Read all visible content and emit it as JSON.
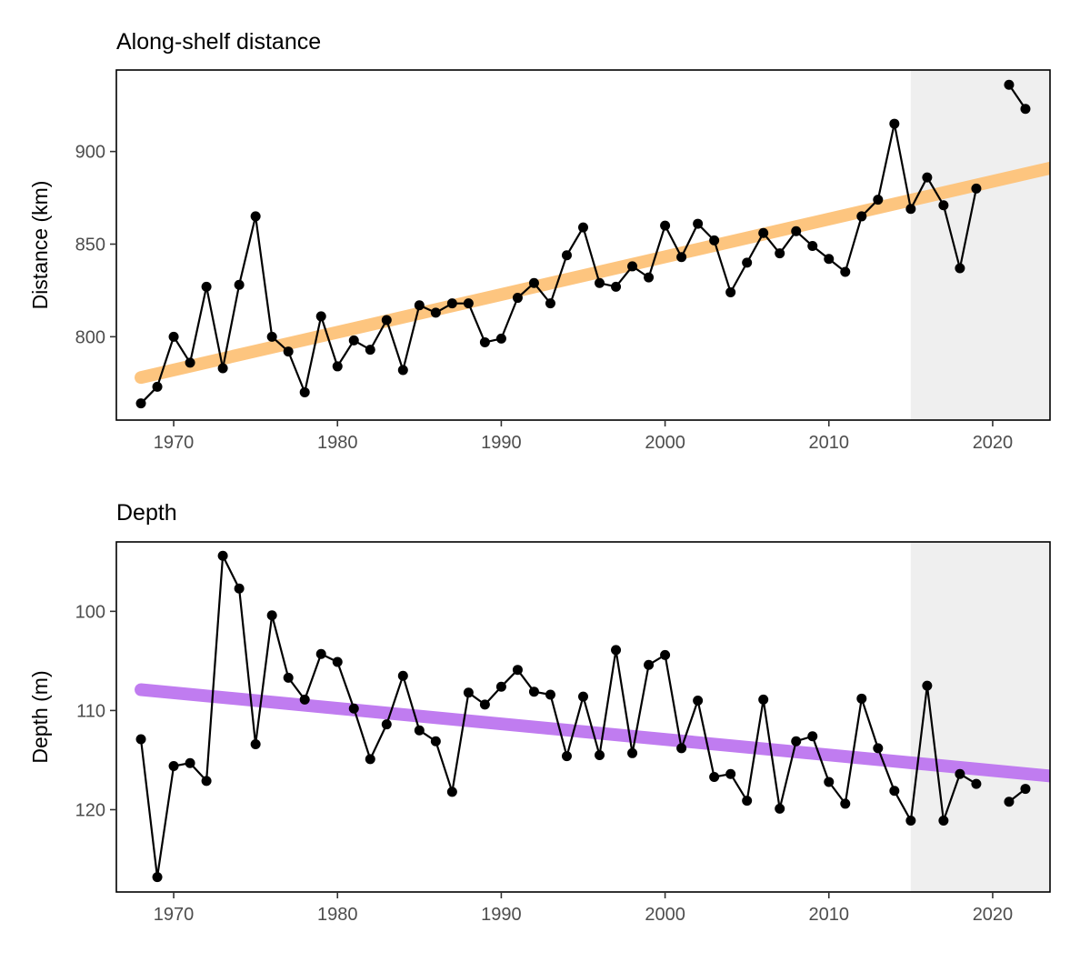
{
  "colors": {
    "point": "#000000",
    "line": "#000000",
    "shade": "#efefef",
    "panel_border": "#000000",
    "distance_trend": "#fdc57f",
    "depth_trend": "#c07cf0"
  },
  "chart_data": [
    {
      "type": "line",
      "title": "Along-shelf distance",
      "xlabel": "",
      "ylabel": "Distance (km)",
      "xlim": [
        1966.5,
        2023.5
      ],
      "ylim": [
        755,
        944
      ],
      "y_reversed": false,
      "x_ticks": [
        1970,
        1980,
        1990,
        2000,
        2010,
        2020
      ],
      "y_ticks": [
        800,
        850,
        900
      ],
      "grid": false,
      "shaded_region": [
        2015,
        2023.5
      ],
      "trend": {
        "x": [
          1968,
          2023.5
        ],
        "y": [
          778,
          891
        ]
      },
      "series": [
        {
          "x": [
            1968,
            1969,
            1970,
            1971,
            1972,
            1973,
            1974,
            1975,
            1976,
            1977,
            1978,
            1979,
            1980,
            1981,
            1982,
            1983,
            1984,
            1985,
            1986,
            1987,
            1988,
            1989,
            1990,
            1991,
            1992,
            1993,
            1994,
            1995,
            1996,
            1997,
            1998,
            1999,
            2000,
            2001,
            2002,
            2003,
            2004,
            2005,
            2006,
            2007,
            2008,
            2009,
            2010,
            2011,
            2012,
            2013,
            2014,
            2015,
            2016,
            2017,
            2018,
            2019,
            2020,
            2021,
            2022
          ],
          "y": [
            764,
            773,
            800,
            786,
            827,
            783,
            828,
            865,
            800,
            792,
            770,
            811,
            784,
            798,
            793,
            809,
            782,
            817,
            813,
            818,
            818,
            797,
            799,
            821,
            829,
            818,
            844,
            859,
            829,
            827,
            838,
            832,
            860,
            843,
            861,
            852,
            824,
            840,
            856,
            845,
            857,
            849,
            842,
            835,
            865,
            874,
            915,
            869,
            886,
            871,
            837,
            880,
            null,
            936,
            923
          ]
        }
      ]
    },
    {
      "type": "line",
      "title": "Depth",
      "xlabel": "",
      "ylabel": "Depth (m)",
      "xlim": [
        1966.5,
        2023.5
      ],
      "ylim": [
        93,
        128.3
      ],
      "y_reversed": true,
      "x_ticks": [
        1970,
        1980,
        1990,
        2000,
        2010,
        2020
      ],
      "y_ticks": [
        100,
        110,
        120
      ],
      "grid": false,
      "shaded_region": [
        2015,
        2023.5
      ],
      "trend": {
        "x": [
          1968,
          2023.5
        ],
        "y": [
          107.9,
          116.6
        ]
      },
      "series": [
        {
          "x": [
            1968,
            1969,
            1970,
            1971,
            1972,
            1973,
            1974,
            1975,
            1976,
            1977,
            1978,
            1979,
            1980,
            1981,
            1982,
            1983,
            1984,
            1985,
            1986,
            1987,
            1988,
            1989,
            1990,
            1991,
            1992,
            1993,
            1994,
            1995,
            1996,
            1997,
            1998,
            1999,
            2000,
            2001,
            2002,
            2003,
            2004,
            2005,
            2006,
            2007,
            2008,
            2009,
            2010,
            2011,
            2012,
            2013,
            2014,
            2015,
            2016,
            2017,
            2018,
            2019,
            2020,
            2021,
            2022
          ],
          "y": [
            112.9,
            126.8,
            115.6,
            115.3,
            117.1,
            94.4,
            97.7,
            113.4,
            100.4,
            106.7,
            108.9,
            104.3,
            105.1,
            109.8,
            114.9,
            111.4,
            106.5,
            112,
            113.1,
            118.2,
            108.2,
            109.4,
            107.6,
            105.9,
            108.1,
            108.4,
            114.6,
            108.6,
            114.5,
            103.9,
            114.3,
            105.4,
            104.4,
            113.8,
            109,
            116.7,
            116.4,
            119.1,
            108.9,
            119.9,
            113.1,
            112.6,
            117.2,
            119.4,
            108.8,
            113.8,
            118.1,
            121.1,
            107.5,
            121.1,
            116.4,
            117.4,
            null,
            119.2,
            117.9
          ]
        }
      ]
    }
  ]
}
